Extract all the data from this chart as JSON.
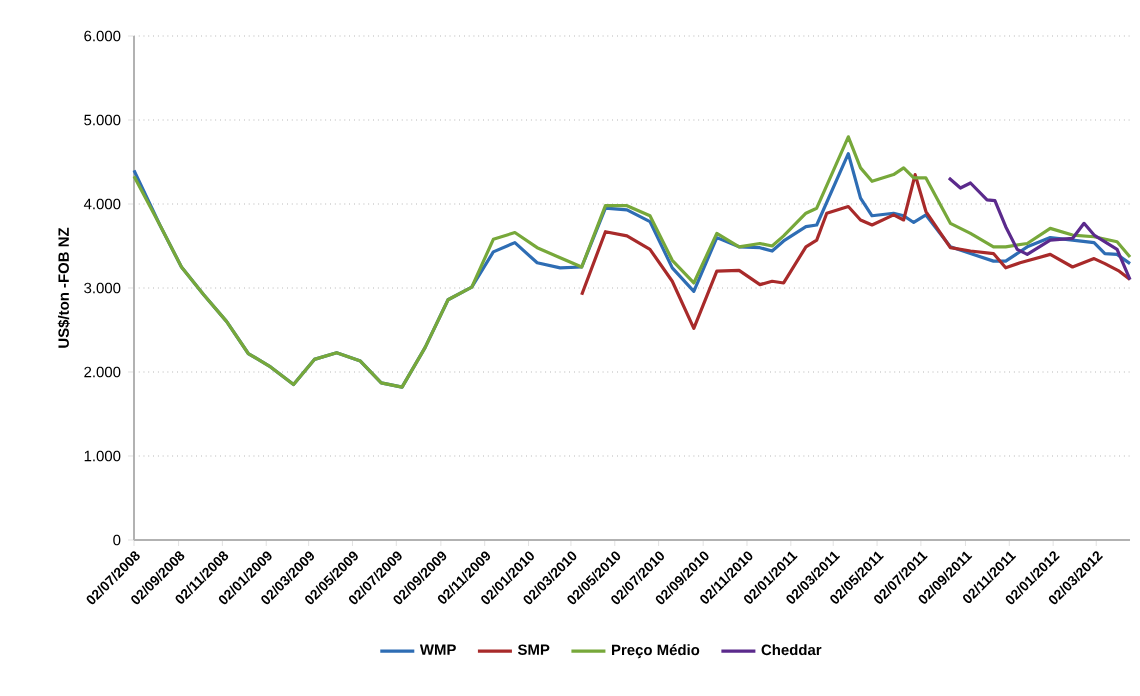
{
  "chart_data": {
    "type": "line",
    "ylabel": "US$/ton -FOB NZ",
    "xlim": [
      "2008-07-02",
      "2012-04-18"
    ],
    "xticks": [
      {
        "value": "2008-07-02",
        "label": "02/07/2008"
      },
      {
        "value": "2008-09-02",
        "label": "02/09/2008"
      },
      {
        "value": "2008-11-02",
        "label": "02/11/2008"
      },
      {
        "value": "2009-01-02",
        "label": "02/01/2009"
      },
      {
        "value": "2009-03-02",
        "label": "02/03/2009"
      },
      {
        "value": "2009-05-02",
        "label": "02/05/2009"
      },
      {
        "value": "2009-07-02",
        "label": "02/07/2009"
      },
      {
        "value": "2009-09-02",
        "label": "02/09/2009"
      },
      {
        "value": "2009-11-02",
        "label": "02/11/2009"
      },
      {
        "value": "2010-01-02",
        "label": "02/01/2010"
      },
      {
        "value": "2010-03-02",
        "label": "02/03/2010"
      },
      {
        "value": "2010-05-02",
        "label": "02/05/2010"
      },
      {
        "value": "2010-07-02",
        "label": "02/07/2010"
      },
      {
        "value": "2010-09-02",
        "label": "02/09/2010"
      },
      {
        "value": "2010-11-02",
        "label": "02/11/2010"
      },
      {
        "value": "2011-01-02",
        "label": "02/01/2011"
      },
      {
        "value": "2011-03-02",
        "label": "02/03/2011"
      },
      {
        "value": "2011-05-02",
        "label": "02/05/2011"
      },
      {
        "value": "2011-07-02",
        "label": "02/07/2011"
      },
      {
        "value": "2011-09-02",
        "label": "02/09/2011"
      },
      {
        "value": "2011-11-02",
        "label": "02/11/2011"
      },
      {
        "value": "2012-01-02",
        "label": "02/01/2012"
      },
      {
        "value": "2012-03-02",
        "label": "02/03/2012"
      }
    ],
    "ylim": [
      0,
      6000
    ],
    "yticks": [
      0,
      {
        "value": 1000,
        "label": "1.000"
      },
      {
        "value": 2000,
        "label": "2.000"
      },
      {
        "value": 3000,
        "label": "3.000"
      },
      {
        "value": 4000,
        "label": "4.000"
      },
      {
        "value": 5000,
        "label": "5.000"
      },
      {
        "value": 6000,
        "label": "6.000"
      }
    ],
    "grid": "y",
    "legend": "bottom",
    "marker": "none",
    "line_style": "solid",
    "series": [
      {
        "name": "WMP",
        "color": "#2e6db4",
        "x": [
          "2008-07-02",
          "2008-08-07",
          "2008-09-06",
          "2008-10-07",
          "2008-11-08",
          "2008-12-08",
          "2009-01-08",
          "2009-02-09",
          "2009-03-10",
          "2009-04-10",
          "2009-05-13",
          "2009-06-11",
          "2009-07-10",
          "2009-08-11",
          "2009-09-12",
          "2009-10-15",
          "2009-11-14",
          "2009-12-14",
          "2010-01-14",
          "2010-02-15",
          "2010-03-17",
          "2010-04-19",
          "2010-05-19",
          "2010-06-20",
          "2010-07-21",
          "2010-08-20",
          "2010-09-21",
          "2010-10-22",
          "2010-11-20",
          "2010-12-07",
          "2010-12-23",
          "2011-01-23",
          "2011-02-07",
          "2011-03-23",
          "2011-04-09",
          "2011-04-25",
          "2011-05-25",
          "2011-06-08",
          "2011-06-22",
          "2011-07-09",
          "2011-08-12",
          "2011-09-09",
          "2011-10-11",
          "2011-10-28",
          "2011-11-27",
          "2011-12-29",
          "2012-01-29",
          "2012-02-28",
          "2012-03-14",
          "2012-03-31",
          "2012-04-18"
        ],
        "values": [
          4400,
          3750,
          3250,
          2920,
          2600,
          2220,
          2060,
          1850,
          2150,
          2230,
          2130,
          1870,
          1820,
          2290,
          2860,
          3010,
          3430,
          3540,
          3300,
          3240,
          3250,
          3950,
          3930,
          3790,
          3240,
          2960,
          3600,
          3490,
          3480,
          3440,
          3560,
          3730,
          3750,
          4600,
          4070,
          3860,
          3890,
          3860,
          3780,
          3870,
          3490,
          3410,
          3320,
          3320,
          3490,
          3600,
          3570,
          3540,
          3410,
          3400,
          3290
        ]
      },
      {
        "name": "SMP",
        "color": "#a82a2a",
        "x": [
          "2010-03-17",
          "2010-04-19",
          "2010-05-19",
          "2010-06-20",
          "2010-07-21",
          "2010-08-20",
          "2010-09-21",
          "2010-10-22",
          "2010-11-20",
          "2010-12-07",
          "2010-12-23",
          "2011-01-23",
          "2011-02-07",
          "2011-02-21",
          "2011-03-23",
          "2011-04-09",
          "2011-04-25",
          "2011-05-25",
          "2011-06-08",
          "2011-06-24",
          "2011-07-09",
          "2011-08-12",
          "2011-09-09",
          "2011-10-11",
          "2011-10-28",
          "2011-11-17",
          "2011-12-29",
          "2012-01-29",
          "2012-02-28",
          "2012-03-14",
          "2012-04-03",
          "2012-04-18"
        ],
        "values": [
          2920,
          3670,
          3620,
          3460,
          3080,
          2520,
          3200,
          3210,
          3040,
          3080,
          3060,
          3490,
          3570,
          3890,
          3970,
          3810,
          3750,
          3870,
          3810,
          4350,
          3910,
          3480,
          3440,
          3410,
          3240,
          3300,
          3400,
          3250,
          3350,
          3290,
          3200,
          3100
        ]
      },
      {
        "name": "Preço Médio",
        "color": "#77a83a",
        "x": [
          "2008-07-02",
          "2008-08-07",
          "2008-09-06",
          "2008-10-07",
          "2008-11-08",
          "2008-12-08",
          "2009-01-08",
          "2009-02-09",
          "2009-03-10",
          "2009-04-10",
          "2009-05-13",
          "2009-06-11",
          "2009-07-10",
          "2009-08-11",
          "2009-09-12",
          "2009-10-15",
          "2009-11-14",
          "2009-12-14",
          "2010-01-14",
          "2010-02-15",
          "2010-03-17",
          "2010-04-19",
          "2010-05-19",
          "2010-06-20",
          "2010-07-21",
          "2010-08-20",
          "2010-09-21",
          "2010-10-22",
          "2010-11-20",
          "2010-12-07",
          "2010-12-23",
          "2011-01-23",
          "2011-02-07",
          "2011-03-23",
          "2011-04-09",
          "2011-04-25",
          "2011-05-25",
          "2011-06-08",
          "2011-06-22",
          "2011-07-09",
          "2011-08-12",
          "2011-09-09",
          "2011-10-11",
          "2011-10-28",
          "2011-11-27",
          "2011-12-29",
          "2012-01-29",
          "2012-02-28",
          "2012-03-31",
          "2012-04-18"
        ],
        "values": [
          4330,
          3750,
          3250,
          2920,
          2600,
          2220,
          2060,
          1850,
          2150,
          2230,
          2130,
          1870,
          1820,
          2290,
          2860,
          3010,
          3580,
          3660,
          3480,
          3360,
          3250,
          3980,
          3980,
          3860,
          3330,
          3060,
          3650,
          3490,
          3530,
          3500,
          3620,
          3890,
          3950,
          4800,
          4430,
          4270,
          4350,
          4430,
          4310,
          4310,
          3770,
          3650,
          3490,
          3490,
          3530,
          3710,
          3630,
          3610,
          3550,
          3370
        ]
      },
      {
        "name": "Cheddar",
        "color": "#5b2a8c",
        "x": [
          "2011-08-10",
          "2011-08-26",
          "2011-09-09",
          "2011-10-02",
          "2011-10-13",
          "2011-10-28",
          "2011-11-13",
          "2011-11-27",
          "2011-12-29",
          "2012-01-29",
          "2012-02-14",
          "2012-02-28",
          "2012-03-31",
          "2012-04-18"
        ],
        "values": [
          4310,
          4190,
          4250,
          4050,
          4040,
          3730,
          3460,
          3400,
          3570,
          3590,
          3770,
          3630,
          3460,
          3100
        ]
      }
    ]
  }
}
